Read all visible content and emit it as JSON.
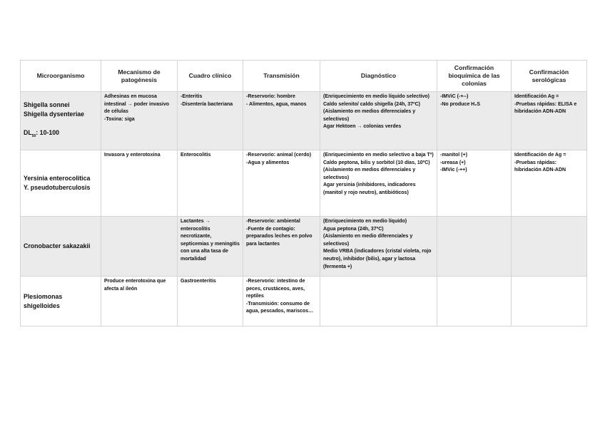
{
  "headers": [
    "Microorganismo",
    "Mecanismo de patogénesis",
    "Cuadro clínico",
    "Transmisión",
    "Diagnóstico",
    "Confirmación bioquímica de las colonias",
    "Confirmación serológicas"
  ],
  "rows": [
    {
      "organism": [
        "Shigella sonnei",
        "Shigella dysenteriae"
      ],
      "dl50_label": "DL",
      "dl50_sub": "50",
      "dl50_value": ": 10-100",
      "mecanismo": [
        "Adhesinas en mucosa intestinal → poder invasivo de células",
        "-Toxina: siga"
      ],
      "cuadro": [
        "-Enteritis",
        "-Disentería bacteriana"
      ],
      "transmision": [
        "-Reservorio: hombre",
        "- Alimentos, agua, manos"
      ],
      "diagnostico": [
        "(Enriquecimiento en medio líquido selectivo)",
        "Caldo selenito/ caldo shigella (24h, 37ºC)",
        "(Aislamiento en medios diferenciales y selectivos)",
        "Agar Hektoen → colonias verdes"
      ],
      "bioquimica": [
        "-IMViC (-+--)",
        "-No produce H₂S"
      ],
      "serologica": [
        "Identificación Ag =",
        "-Pruebas rápidas: ELISA e hibridación ADN-ADN"
      ]
    },
    {
      "organism": [
        "Yersinia enterocolitica",
        "Y. pseudotuberculosis"
      ],
      "mecanismo": [
        "Invasora y enterotoxina"
      ],
      "cuadro": [
        "Enterocolitis"
      ],
      "transmision": [
        "-Reservorio: animal (cerdo)",
        "-Agua y alimentos"
      ],
      "diagnostico": [
        "(Enriquecimiento en medio selectivo a baja Tª)",
        "Caldo peptona, bilis y sorbitol (10 días, 10ºC)",
        "(Aislamiento en medios diferenciales y selectivos)",
        "Agar yersinia (inhibidores, indicadores (manitol y rojo neutro), antibióticos)"
      ],
      "bioquimica": [
        "-manitol (+)",
        "-ureasa (+)",
        "-IMVic (-++)"
      ],
      "serologica": [
        "Identificación de Ag =",
        "-Pruebas rápidas: hibridación ADN-ADN"
      ]
    },
    {
      "organism": [
        "Cronobacter sakazakii"
      ],
      "mecanismo": [],
      "cuadro": [
        "Lactantes → enterocolitis necrotizante, septicemias y meningitis con una alta tasa de mortalidad"
      ],
      "transmision": [
        "-Reservorio: ambiental",
        "-Fuente de contagio: preparados leches en polvo para lactantes"
      ],
      "diagnostico": [
        "(Enriquecimiento en medio líquido)",
        "Agua peptona (24h, 37ºC)",
        "(Aislamiento en medio diferenciales y selectivos)",
        "Medio VRBA (indicadores (cristal violeta, rojo neutro), inhibidor (bilis), agar y lactosa (fermenta +)"
      ],
      "bioquimica": [],
      "serologica": []
    },
    {
      "organism": [
        "Plesiomonas shigelloides"
      ],
      "mecanismo": [
        "Produce enterotoxina que afecta al ileón"
      ],
      "cuadro": [
        "Gastroenteritis"
      ],
      "transmision": [
        "-Reservorio: intestino de peces, crustáceos, aves, reptiles",
        "-Transmisión: consumo de agua, pescados, mariscos…"
      ],
      "diagnostico": [],
      "bioquimica": [],
      "serologica": []
    }
  ]
}
